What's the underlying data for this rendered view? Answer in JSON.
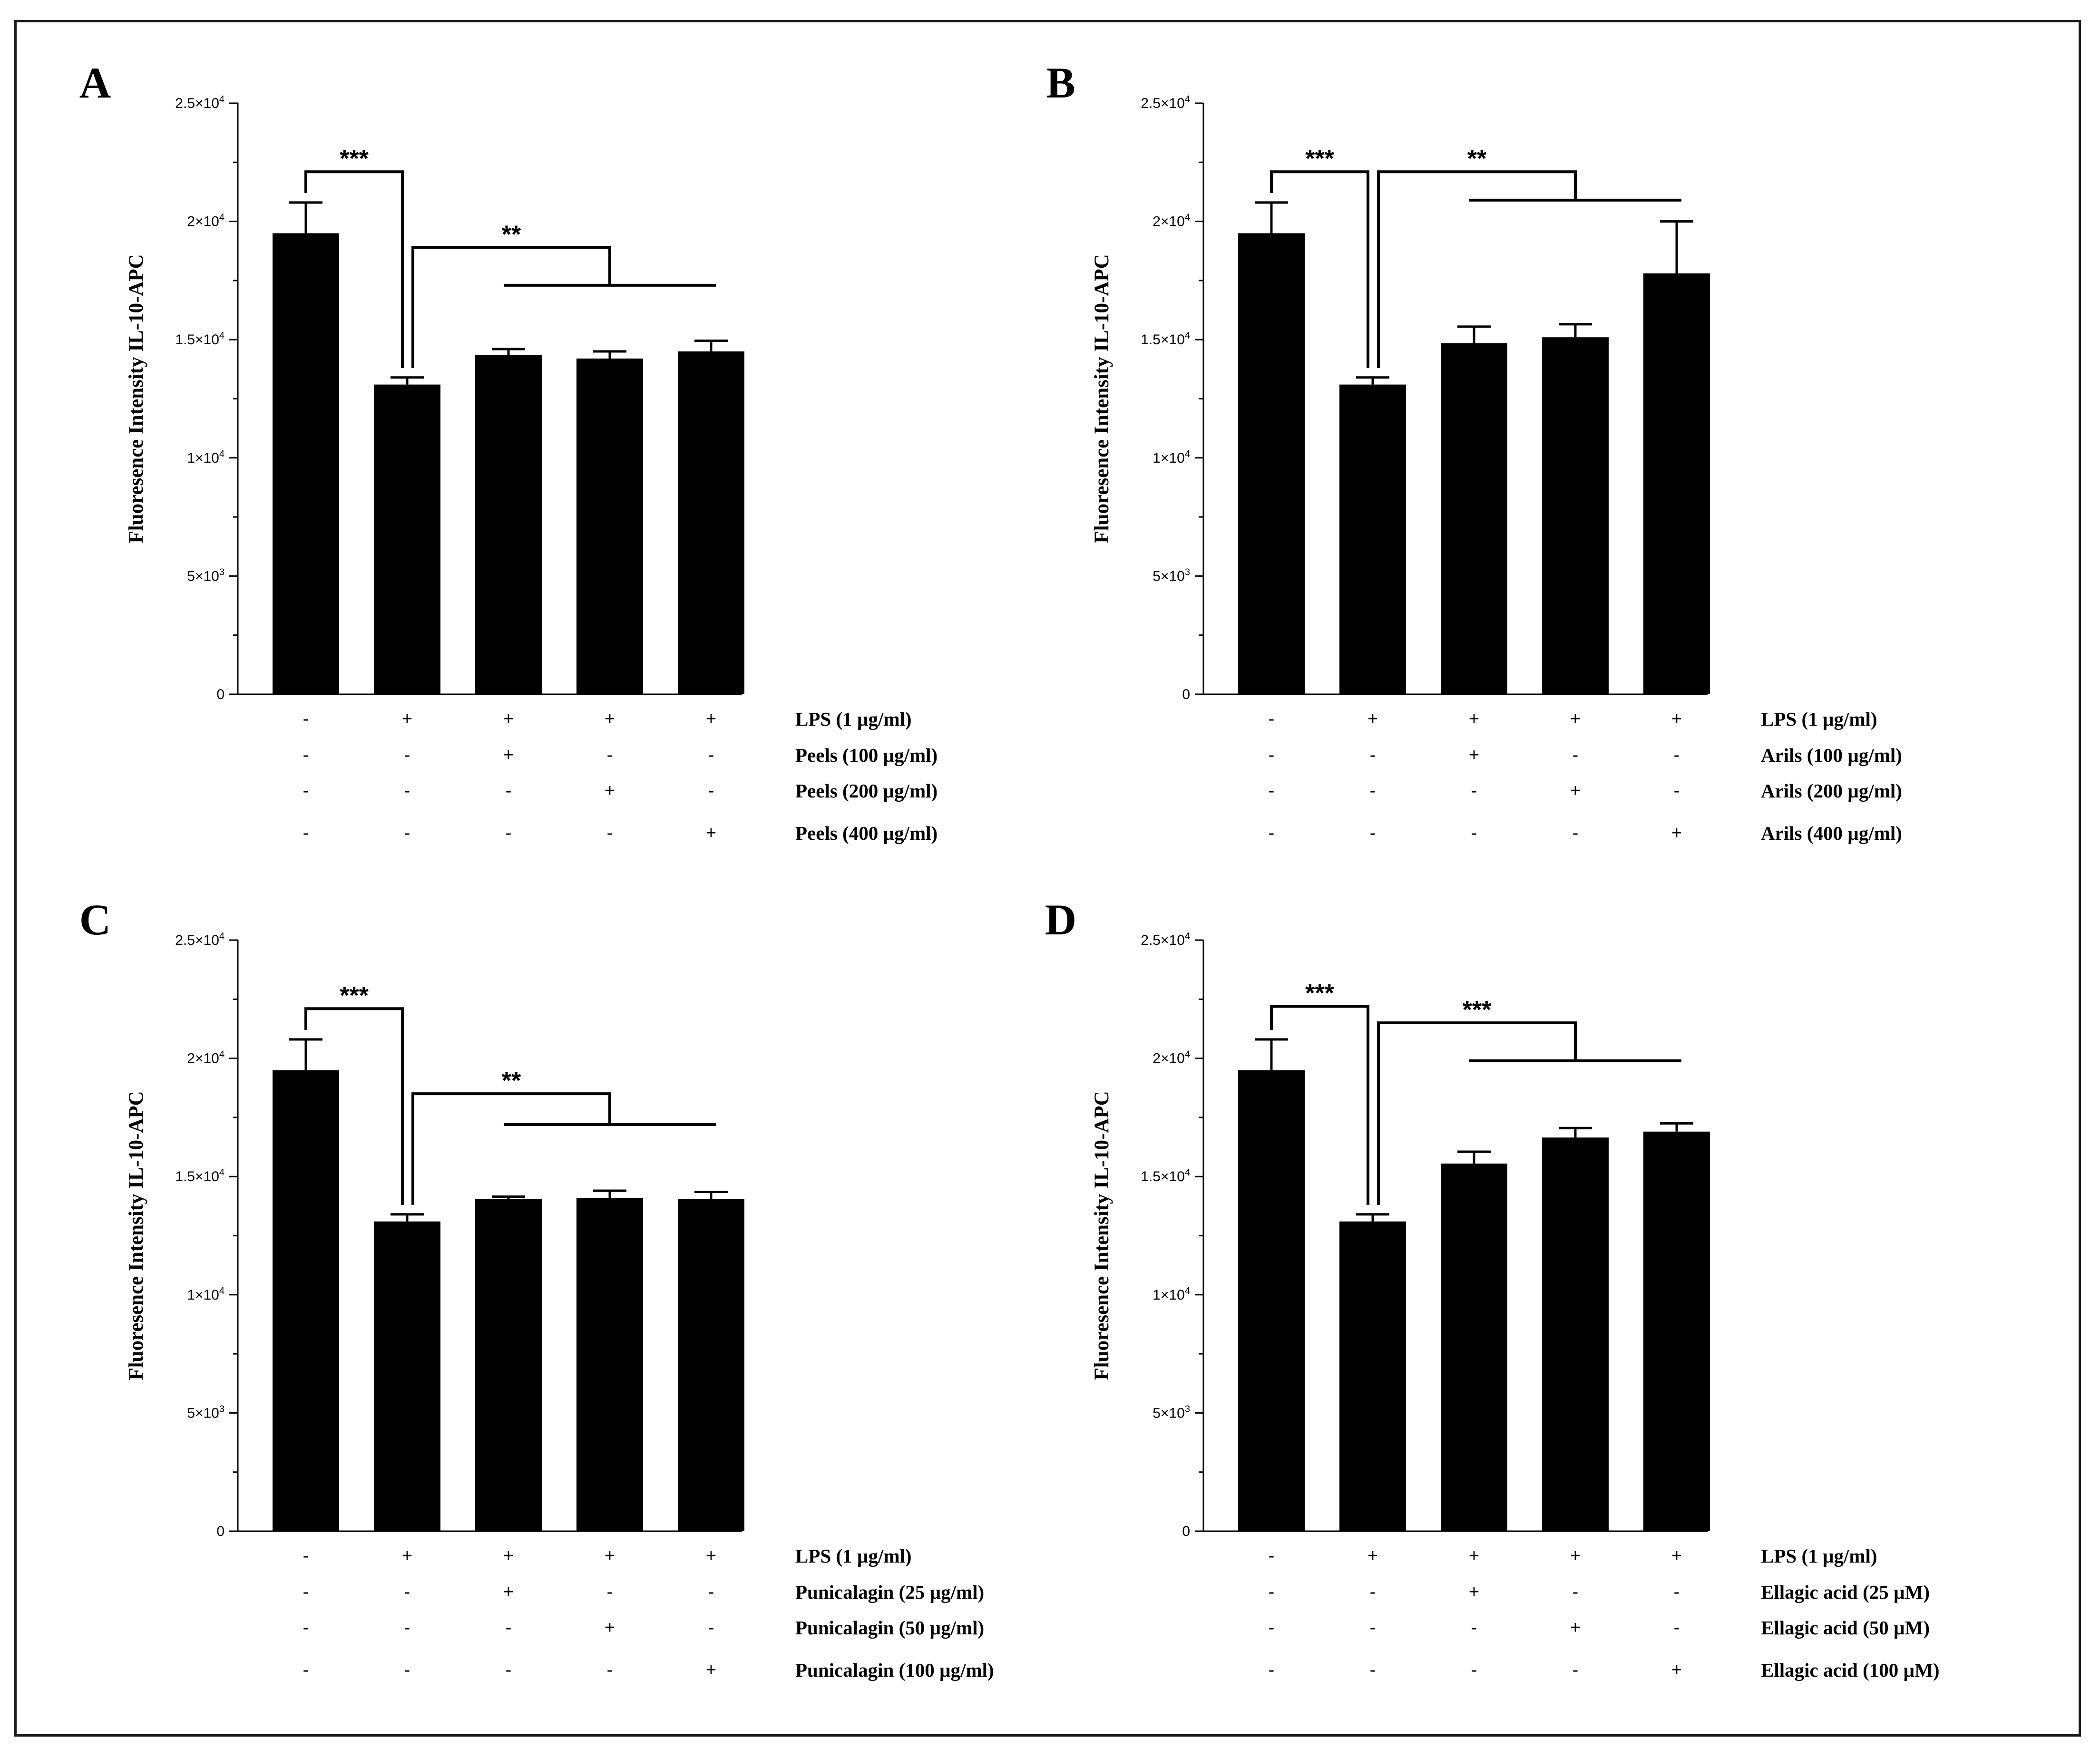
{
  "chart_data": [
    {
      "type": "bar",
      "panel": "A",
      "ylabel": "Fluoresence Intensity IL-10-APC",
      "ylim": [
        0,
        25000
      ],
      "yticks": [
        0,
        5000,
        10000,
        15000,
        20000,
        25000
      ],
      "ytick_labels": [
        {
          "base": "0",
          "exp": ""
        },
        {
          "base": "5×10",
          "exp": "3"
        },
        {
          "base": "1×10",
          "exp": "4"
        },
        {
          "base": "1.5×10",
          "exp": "4"
        },
        {
          "base": "2×10",
          "exp": "4"
        },
        {
          "base": "2.5×10",
          "exp": "4"
        }
      ],
      "values": [
        19500,
        13100,
        14350,
        14200,
        14500
      ],
      "errors": [
        1300,
        300,
        250,
        300,
        450
      ],
      "conditions": [
        {
          "label": "LPS  (1 µg/ml)",
          "signs": [
            "-",
            "+",
            "+",
            "+",
            "+"
          ]
        },
        {
          "label": "Peels (100 µg/ml)",
          "signs": [
            "-",
            "-",
            "+",
            "-",
            "-"
          ]
        },
        {
          "label": "Peels (200 µg/ml)",
          "signs": [
            "-",
            "-",
            "-",
            "+",
            "-"
          ]
        },
        {
          "label": "Peels (400 µg/ml)",
          "signs": [
            "-",
            "-",
            "-",
            "-",
            "+"
          ]
        }
      ],
      "significance": [
        {
          "label": "***",
          "from": 0,
          "to": 1,
          "level": 22100
        },
        {
          "label": "**",
          "from": 1,
          "to": [
            2,
            4
          ],
          "level": 18900,
          "group_level": 17300
        }
      ]
    },
    {
      "type": "bar",
      "panel": "B",
      "ylabel": "Fluoresence Intensity IL-10-APC",
      "ylim": [
        0,
        25000
      ],
      "yticks": [
        0,
        5000,
        10000,
        15000,
        20000,
        25000
      ],
      "ytick_labels": [
        {
          "base": "0",
          "exp": ""
        },
        {
          "base": "5×10",
          "exp": "3"
        },
        {
          "base": "1×10",
          "exp": "4"
        },
        {
          "base": "1.5×10",
          "exp": "4"
        },
        {
          "base": "2×10",
          "exp": "4"
        },
        {
          "base": "2.5×10",
          "exp": "4"
        }
      ],
      "values": [
        19500,
        13100,
        14850,
        15100,
        17800
      ],
      "errors": [
        1300,
        300,
        700,
        550,
        2200
      ],
      "conditions": [
        {
          "label": "LPS  (1 µg/ml)",
          "signs": [
            "-",
            "+",
            "+",
            "+",
            "+"
          ]
        },
        {
          "label": "Arils (100 µg/ml)",
          "signs": [
            "-",
            "-",
            "+",
            "-",
            "-"
          ]
        },
        {
          "label": "Arils (200 µg/ml)",
          "signs": [
            "-",
            "-",
            "-",
            "+",
            "-"
          ]
        },
        {
          "label": "Arils (400 µg/ml)",
          "signs": [
            "-",
            "-",
            "-",
            "-",
            "+"
          ]
        }
      ],
      "significance": [
        {
          "label": "***",
          "from": 0,
          "to": 1,
          "level": 22100
        },
        {
          "label": "**",
          "from": 1,
          "to": [
            2,
            4
          ],
          "level": 22100,
          "group_level": 20900
        }
      ]
    },
    {
      "type": "bar",
      "panel": "C",
      "ylabel": "Fluoresence Intensity IL-10-APC",
      "ylim": [
        0,
        25000
      ],
      "yticks": [
        0,
        5000,
        10000,
        15000,
        20000,
        25000
      ],
      "ytick_labels": [
        {
          "base": "0",
          "exp": ""
        },
        {
          "base": "5×10",
          "exp": "3"
        },
        {
          "base": "1×10",
          "exp": "4"
        },
        {
          "base": "1.5×10",
          "exp": "4"
        },
        {
          "base": "2×10",
          "exp": "4"
        },
        {
          "base": "2.5×10",
          "exp": "4"
        }
      ],
      "values": [
        19500,
        13100,
        14050,
        14100,
        14050
      ],
      "errors": [
        1300,
        300,
        100,
        300,
        300
      ],
      "conditions": [
        {
          "label": "LPS  (1 µg/ml)",
          "signs": [
            "-",
            "+",
            "+",
            "+",
            "+"
          ]
        },
        {
          "label": "Punicalagin (25 µg/ml)",
          "signs": [
            "-",
            "-",
            "+",
            "-",
            "-"
          ]
        },
        {
          "label": "Punicalagin (50 µg/ml)",
          "signs": [
            "-",
            "-",
            "-",
            "+",
            "-"
          ]
        },
        {
          "label": "Punicalagin (100 µg/ml)",
          "signs": [
            "-",
            "-",
            "-",
            "-",
            "+"
          ]
        }
      ],
      "significance": [
        {
          "label": "***",
          "from": 0,
          "to": 1,
          "level": 22100
        },
        {
          "label": "**",
          "from": 1,
          "to": [
            2,
            4
          ],
          "level": 18500,
          "group_level": 17200
        }
      ]
    },
    {
      "type": "bar",
      "panel": "D",
      "ylabel": "Fluoresence Intensity IL-10-APC",
      "ylim": [
        0,
        25000
      ],
      "yticks": [
        0,
        5000,
        10000,
        15000,
        20000,
        25000
      ],
      "ytick_labels": [
        {
          "base": "0",
          "exp": ""
        },
        {
          "base": "5×10",
          "exp": "3"
        },
        {
          "base": "1×10",
          "exp": "4"
        },
        {
          "base": "1.5×10",
          "exp": "4"
        },
        {
          "base": "2×10",
          "exp": "4"
        },
        {
          "base": "2.5×10",
          "exp": "4"
        }
      ],
      "values": [
        19500,
        13100,
        15550,
        16650,
        16900
      ],
      "errors": [
        1300,
        300,
        500,
        400,
        350
      ],
      "conditions": [
        {
          "label": "LPS  (1 µg/ml)",
          "signs": [
            "-",
            "+",
            "+",
            "+",
            "+"
          ]
        },
        {
          "label": "Ellagic acid (25 µM)",
          "signs": [
            "-",
            "-",
            "+",
            "-",
            "-"
          ]
        },
        {
          "label": "Ellagic acid (50 µM)",
          "signs": [
            "-",
            "-",
            "-",
            "+",
            "-"
          ]
        },
        {
          "label": "Ellagic acid (100 µM)",
          "signs": [
            "-",
            "-",
            "-",
            "-",
            "+"
          ]
        }
      ],
      "significance": [
        {
          "label": "***",
          "from": 0,
          "to": 1,
          "level": 22200
        },
        {
          "label": "***",
          "from": 1,
          "to": [
            2,
            4
          ],
          "level": 21500,
          "group_level": 19900
        }
      ]
    }
  ],
  "colors": {
    "bar": "#000000",
    "axis": "#000000",
    "frame": "#1a1a1a",
    "background": "#ffffff"
  }
}
